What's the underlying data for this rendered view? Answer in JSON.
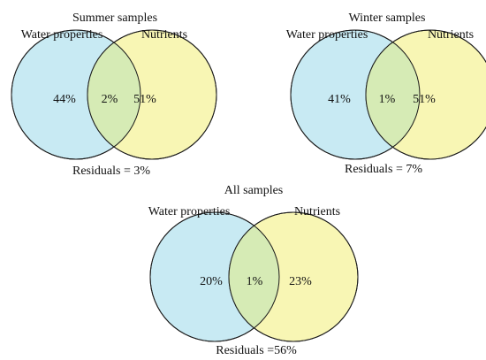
{
  "colors": {
    "left_set": "#c8eaf3",
    "right_set": "#f8f6b4",
    "overlap": "#d6ebb5",
    "outline": "#1a1a1a"
  },
  "diagrams": [
    {
      "title": "Summer samples",
      "left_label": "Water properties",
      "right_label": "Nutrients",
      "left_only": "44%",
      "overlap": "2%",
      "right_only": "51%",
      "residuals": "Residuals = 3%"
    },
    {
      "title": "Winter samples",
      "left_label": "Water properties",
      "right_label": "Nutrients",
      "left_only": "41%",
      "overlap": "1%",
      "right_only": "51%",
      "residuals": "Residuals = 7%"
    },
    {
      "title": "All samples",
      "left_label": "Water properties",
      "right_label": "Nutrients",
      "left_only": "20%",
      "overlap": "1%",
      "right_only": "23%",
      "residuals": "Residuals =56%"
    }
  ]
}
